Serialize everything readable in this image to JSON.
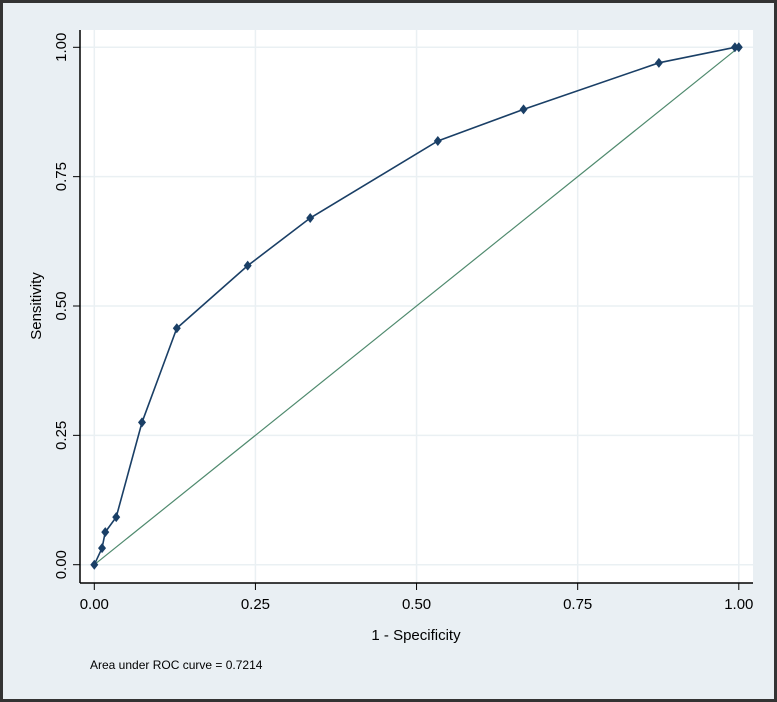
{
  "chart_data": {
    "type": "line",
    "xlabel": "1 - Specificity",
    "ylabel": "Sensitivity",
    "xlim": [
      0,
      1
    ],
    "ylim": [
      0,
      1
    ],
    "xticks": [
      "0.00",
      "0.25",
      "0.50",
      "0.75",
      "1.00"
    ],
    "yticks": [
      "0.00",
      "0.25",
      "0.50",
      "0.75",
      "1.00"
    ],
    "grid": true,
    "series": [
      {
        "x": [
          0,
          0.012,
          0.017,
          0.034,
          0.074,
          0.128,
          0.238,
          0.335,
          0.533,
          0.666,
          0.876,
          0.994,
          1
        ],
        "y": [
          0,
          0.032,
          0.063,
          0.092,
          0.275,
          0.457,
          0.578,
          0.67,
          0.819,
          0.88,
          0.97,
          1,
          1
        ],
        "color": "#1a3f66",
        "marker": "diamond"
      },
      {
        "x": [
          0,
          1
        ],
        "y": [
          0,
          1
        ],
        "color": "#4f8a6e",
        "marker": "none"
      }
    ],
    "annotation": "Area under ROC curve = 0.7214"
  }
}
